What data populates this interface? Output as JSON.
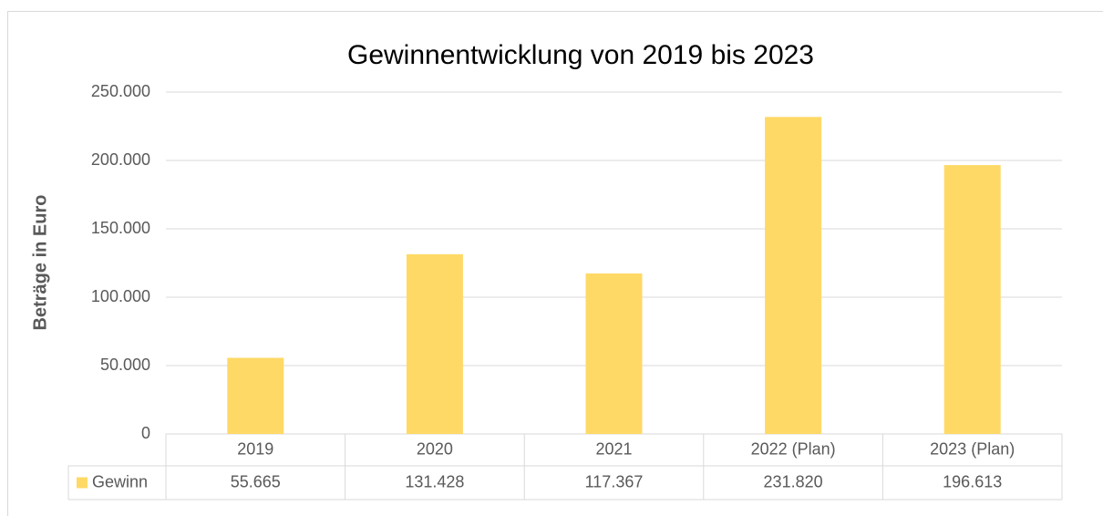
{
  "chart_data": {
    "type": "bar",
    "title": "Gewinnentwicklung von 2019 bis 2023",
    "y_label": "Beträge in Euro",
    "categories": [
      "2019",
      "2020",
      "2021",
      "2022 (Plan)",
      "2023 (Plan)"
    ],
    "series": [
      {
        "name": "Gewinn",
        "color": "#ffd966",
        "values": [
          55665,
          131428,
          117367,
          231820,
          196613
        ],
        "value_labels": [
          "55.665",
          "131.428",
          "117.367",
          "231.820",
          "196.613"
        ]
      }
    ],
    "ylim": [
      0,
      250000
    ],
    "yticks": [
      0,
      {
        "value": 50000,
        "label": "50.000"
      },
      {
        "value": 100000,
        "label": "100.000"
      },
      {
        "value": 150000,
        "label": "150.000"
      },
      {
        "value": 200000,
        "label": "200.000"
      },
      {
        "value": 250000,
        "label": "250.000"
      }
    ],
    "grid": true,
    "data_table": true
  }
}
